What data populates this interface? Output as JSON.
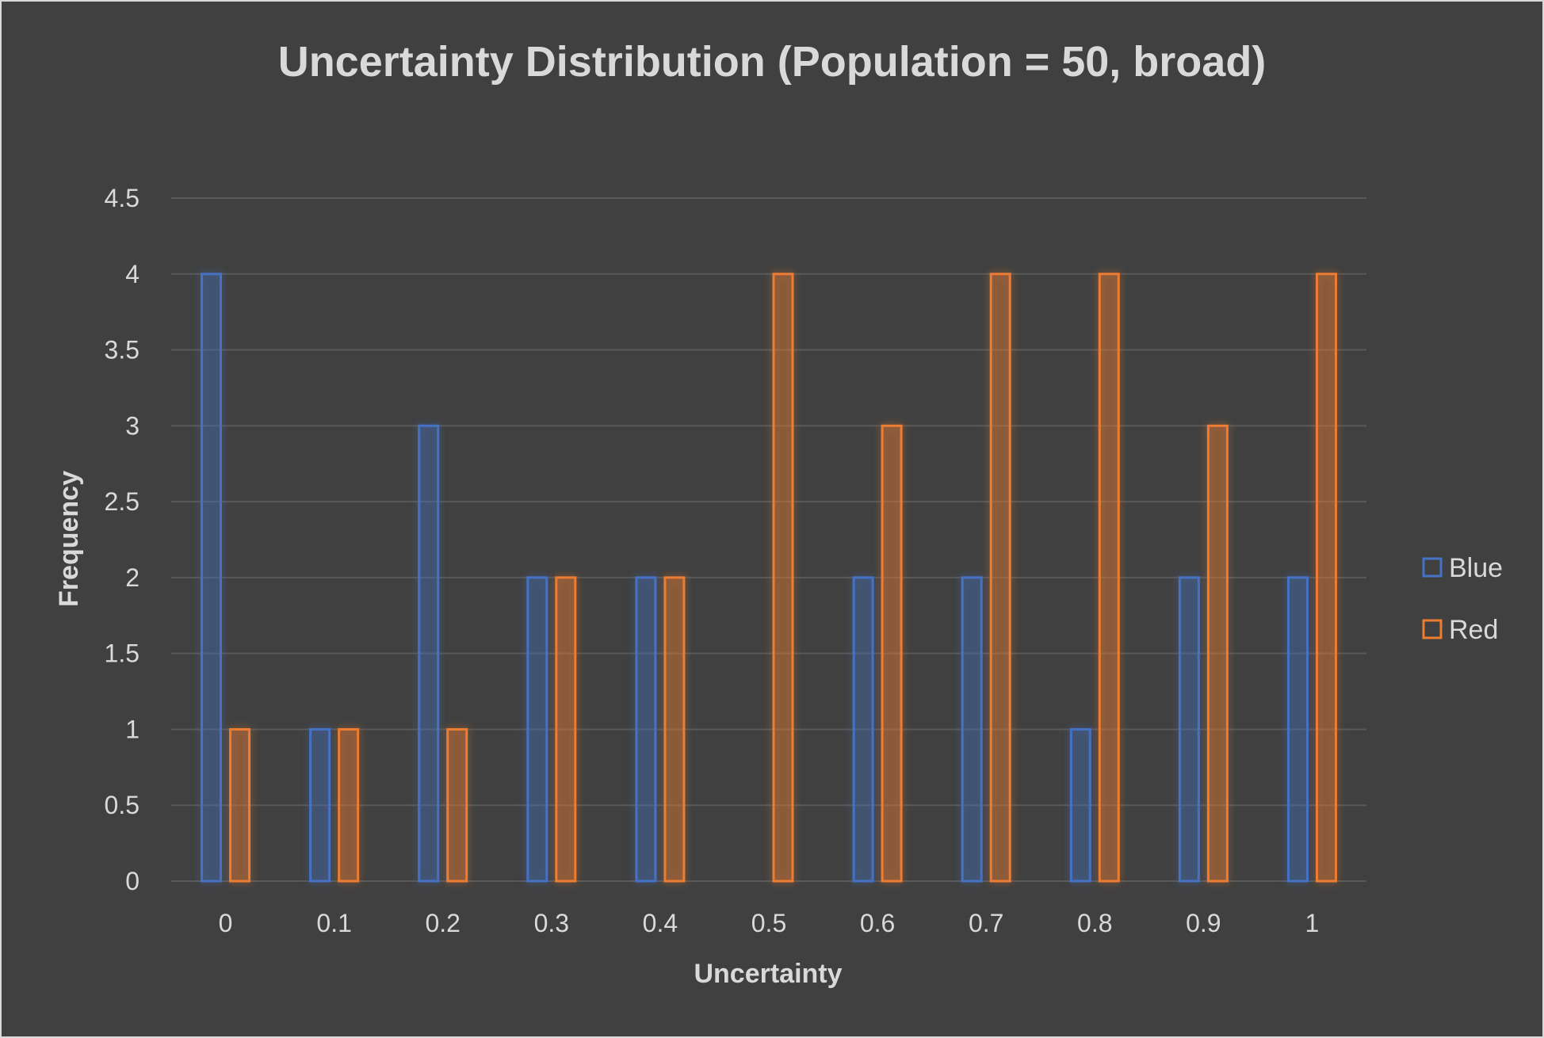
{
  "chart_data": {
    "type": "bar",
    "title": "Uncertainty Distribution (Population = 50, broad)",
    "xlabel": "Uncertainty",
    "ylabel": "Frequency",
    "categories": [
      "0",
      "0.1",
      "0.2",
      "0.3",
      "0.4",
      "0.5",
      "0.6",
      "0.7",
      "0.8",
      "0.9",
      "1"
    ],
    "series": [
      {
        "name": "Blue",
        "color": "#4472c4",
        "values": [
          4,
          1,
          3,
          2,
          2,
          0,
          2,
          2,
          1,
          2,
          2
        ]
      },
      {
        "name": "Red",
        "color": "#ed7d31",
        "values": [
          1,
          1,
          1,
          2,
          2,
          4,
          3,
          4,
          4,
          3,
          4
        ]
      }
    ],
    "ylim": [
      0,
      4.5
    ],
    "yticks": [
      "0",
      "0.5",
      "1",
      "1.5",
      "2",
      "2.5",
      "3",
      "3.5",
      "4",
      "4.5"
    ],
    "grid": true,
    "legend_position": "right",
    "background": "#404040"
  }
}
